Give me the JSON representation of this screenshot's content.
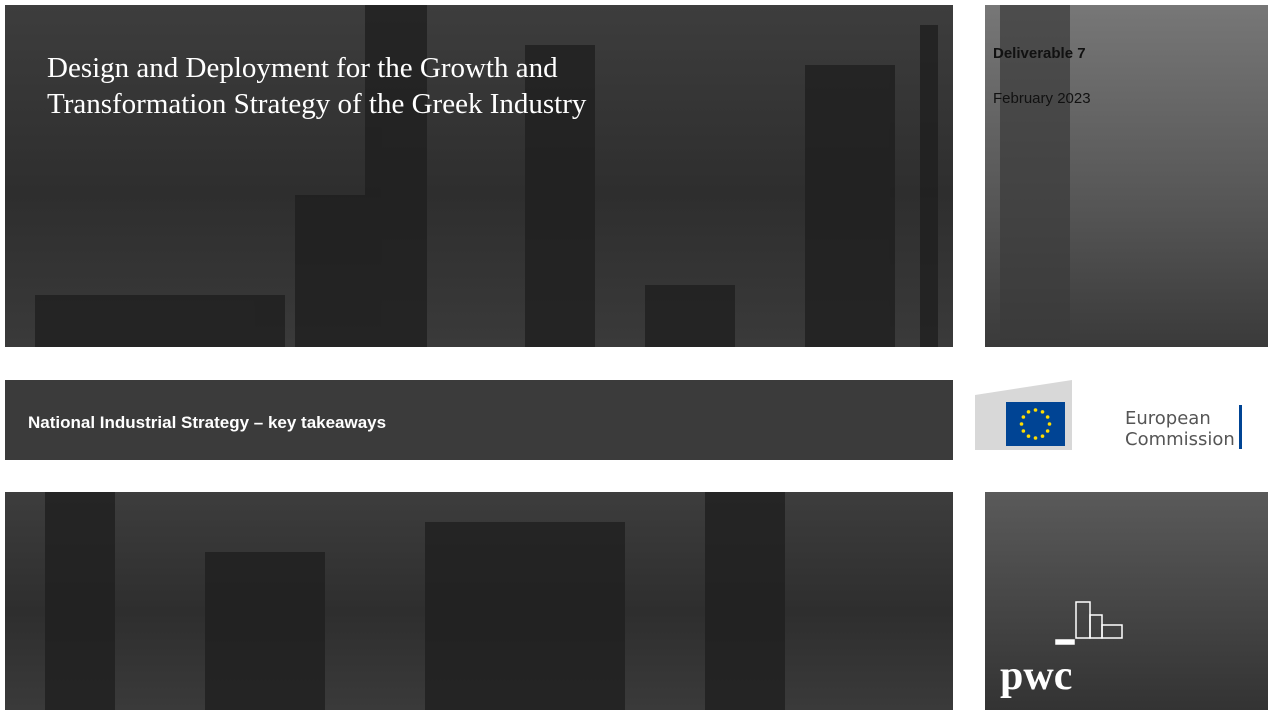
{
  "header": {
    "title_lines": [
      "Design and Deployment for the Growth and",
      "Transformation Strategy of the Greek Industry"
    ]
  },
  "meta": {
    "deliverable": "Deliverable 7",
    "date": "February 2023"
  },
  "subtitle": "National Industrial Strategy – key takeaways",
  "logos": {
    "ec": [
      "European",
      "Commission"
    ],
    "pwc": "pwc"
  }
}
